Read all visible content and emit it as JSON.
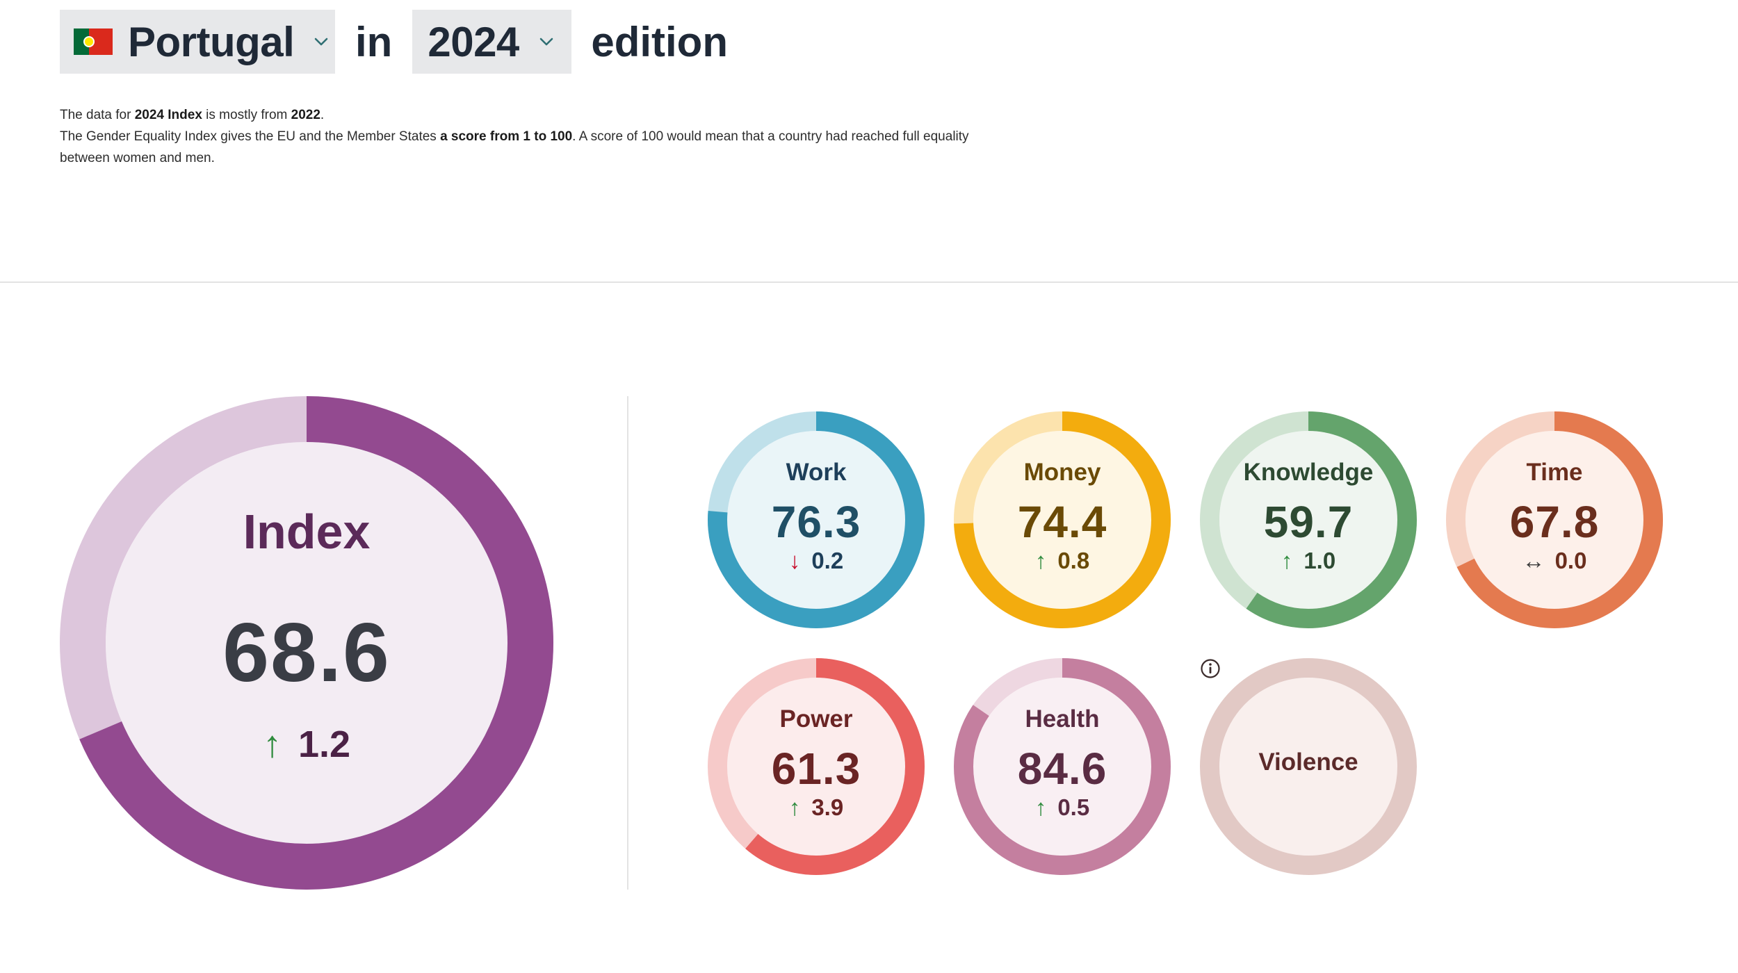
{
  "header": {
    "country": "Portugal",
    "in_label": "in",
    "year": "2024",
    "edition_label": "edition"
  },
  "description": {
    "line1_prefix": "The data for ",
    "line1_bold1": "2024 Index",
    "line1_middle": " is mostly from ",
    "line1_bold2": "2022",
    "line1_suffix": ".",
    "line2_prefix": "The Gender Equality Index gives the EU and the Member States ",
    "line2_bold": "a score from 1 to 100",
    "line2_suffix": ". A score of 100 would mean that a country had reached full equality between women and men."
  },
  "index": {
    "title": "Index",
    "value": "68.6",
    "score": 68.6,
    "change_arrow": "↑",
    "change": "1.2",
    "colors": {
      "fill": "#934a90",
      "track": "#ddc6dc",
      "inner": "#f3ecf3"
    }
  },
  "domains": [
    {
      "key": "work",
      "title": "Work",
      "value": "76.3",
      "score": 76.3,
      "change_arrow": "↓",
      "change_dir": "down",
      "change": "0.2",
      "colors": {
        "fill": "#3a9fc0",
        "track": "#bfe0ea",
        "inner": "#eaf5f8",
        "title": "#1e3f5a",
        "value": "#1f4f66"
      }
    },
    {
      "key": "money",
      "title": "Money",
      "value": "74.4",
      "score": 74.4,
      "change_arrow": "↑",
      "change_dir": "up",
      "change": "0.8",
      "colors": {
        "fill": "#f3ac0e",
        "track": "#fce3ad",
        "inner": "#fef6e3",
        "title": "#6a4a06",
        "value": "#6a4a06"
      }
    },
    {
      "key": "knowledge",
      "title": "Knowledge",
      "value": "59.7",
      "score": 59.7,
      "change_arrow": "↑",
      "change_dir": "up",
      "change": "1.0",
      "colors": {
        "fill": "#64a46c",
        "track": "#cfe3d1",
        "inner": "#eff5f0",
        "title": "#2d4a32",
        "value": "#2d4a32"
      }
    },
    {
      "key": "time",
      "title": "Time",
      "value": "67.8",
      "score": 67.8,
      "change_arrow": "↔",
      "change_dir": "flat",
      "change": "0.0",
      "colors": {
        "fill": "#e47a4f",
        "track": "#f6d3c5",
        "inner": "#fdf0ea",
        "title": "#6a2e1d",
        "value": "#6a2e1d"
      }
    },
    {
      "key": "power",
      "title": "Power",
      "value": "61.3",
      "score": 61.3,
      "change_arrow": "↑",
      "change_dir": "up",
      "change": "3.9",
      "colors": {
        "fill": "#e9605e",
        "track": "#f6cac9",
        "inner": "#fcecec",
        "title": "#6a2424",
        "value": "#6a2424"
      }
    },
    {
      "key": "health",
      "title": "Health",
      "value": "84.6",
      "score": 84.6,
      "change_arrow": "↑",
      "change_dir": "up",
      "change": "0.5",
      "colors": {
        "fill": "#c47f9f",
        "track": "#eed7e1",
        "inner": "#f9eff3",
        "title": "#5a2c43",
        "value": "#5a2c43"
      }
    },
    {
      "key": "violence",
      "title": "Violence",
      "value": "",
      "score": null,
      "info_icon": "info-icon",
      "colors": {
        "fill": "#e2c9c5",
        "track": "#e2c9c5",
        "inner": "#f9efed",
        "title": "#5b2a2a",
        "value": "#5b2a2a"
      }
    }
  ],
  "icons": {
    "flag": "portugal-flag-icon",
    "chevron": "chevron-down-icon",
    "info": "info-icon"
  }
}
